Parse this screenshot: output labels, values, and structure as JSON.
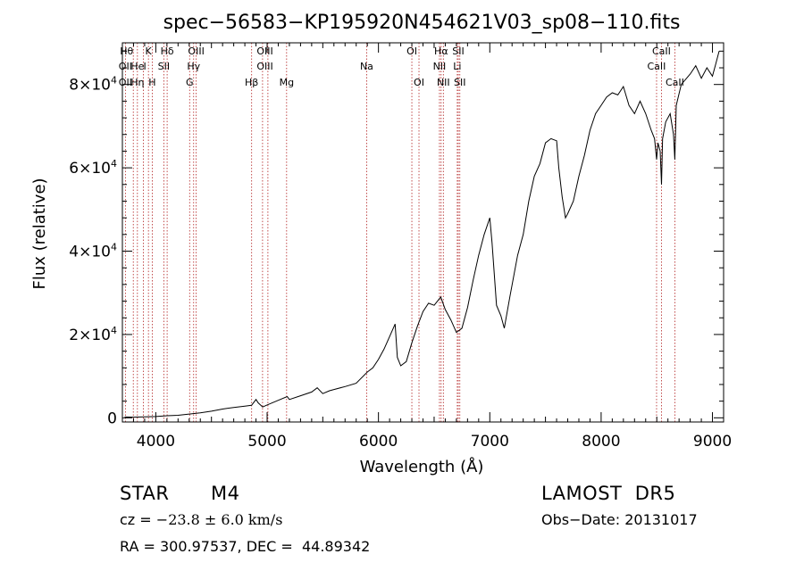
{
  "chart_data": {
    "type": "line",
    "title": "spec−56583−KP195920N454621V03_sp08−110.fits",
    "xlabel": "Wavelength (Å)",
    "ylabel": "Flux (relative)",
    "xlim": [
      3700,
      9100
    ],
    "ylim": [
      -1000,
      90000
    ],
    "x_ticks": [
      4000,
      5000,
      6000,
      7000,
      8000,
      9000
    ],
    "y_ticks": [
      {
        "value": 0,
        "label": "0"
      },
      {
        "value": 20000,
        "label": "2×10",
        "exp": "4"
      },
      {
        "value": 40000,
        "label": "4×10",
        "exp": "4"
      },
      {
        "value": 60000,
        "label": "6×10",
        "exp": "4"
      },
      {
        "value": 80000,
        "label": "8×10",
        "exp": "4"
      }
    ],
    "series": [
      {
        "line_color": "#000000",
        "points": [
          [
            3720,
            200
          ],
          [
            3800,
            150
          ],
          [
            3900,
            250
          ],
          [
            4000,
            300
          ],
          [
            4100,
            500
          ],
          [
            4200,
            600
          ],
          [
            4300,
            900
          ],
          [
            4400,
            1200
          ],
          [
            4500,
            1600
          ],
          [
            4600,
            2100
          ],
          [
            4700,
            2500
          ],
          [
            4800,
            2800
          ],
          [
            4860,
            3000
          ],
          [
            4900,
            4400
          ],
          [
            4920,
            3600
          ],
          [
            4960,
            2600
          ],
          [
            5000,
            3100
          ],
          [
            5100,
            4200
          ],
          [
            5180,
            5100
          ],
          [
            5200,
            4400
          ],
          [
            5300,
            5300
          ],
          [
            5400,
            6200
          ],
          [
            5450,
            7200
          ],
          [
            5500,
            5800
          ],
          [
            5560,
            6500
          ],
          [
            5600,
            6800
          ],
          [
            5700,
            7500
          ],
          [
            5800,
            8300
          ],
          [
            5900,
            11000
          ],
          [
            5950,
            12000
          ],
          [
            6000,
            14000
          ],
          [
            6050,
            16500
          ],
          [
            6100,
            19500
          ],
          [
            6150,
            22500
          ],
          [
            6170,
            14500
          ],
          [
            6200,
            12500
          ],
          [
            6250,
            13500
          ],
          [
            6300,
            18000
          ],
          [
            6350,
            22000
          ],
          [
            6400,
            25500
          ],
          [
            6450,
            27500
          ],
          [
            6500,
            27000
          ],
          [
            6560,
            29000
          ],
          [
            6600,
            26000
          ],
          [
            6650,
            23500
          ],
          [
            6700,
            20500
          ],
          [
            6750,
            21500
          ],
          [
            6800,
            26500
          ],
          [
            6850,
            33000
          ],
          [
            6900,
            39000
          ],
          [
            6950,
            44000
          ],
          [
            7000,
            48000
          ],
          [
            7020,
            42000
          ],
          [
            7060,
            27000
          ],
          [
            7100,
            24500
          ],
          [
            7130,
            21500
          ],
          [
            7180,
            29000
          ],
          [
            7250,
            39000
          ],
          [
            7300,
            44000
          ],
          [
            7350,
            52000
          ],
          [
            7400,
            58000
          ],
          [
            7450,
            61000
          ],
          [
            7500,
            66000
          ],
          [
            7550,
            67000
          ],
          [
            7600,
            66500
          ],
          [
            7620,
            60000
          ],
          [
            7650,
            53000
          ],
          [
            7680,
            48000
          ],
          [
            7700,
            49000
          ],
          [
            7750,
            52000
          ],
          [
            7800,
            58000
          ],
          [
            7850,
            63000
          ],
          [
            7900,
            69000
          ],
          [
            7950,
            73000
          ],
          [
            8000,
            75000
          ],
          [
            8050,
            77000
          ],
          [
            8100,
            78000
          ],
          [
            8150,
            77500
          ],
          [
            8200,
            79500
          ],
          [
            8250,
            75000
          ],
          [
            8300,
            73000
          ],
          [
            8350,
            76000
          ],
          [
            8400,
            73000
          ],
          [
            8450,
            69000
          ],
          [
            8480,
            67000
          ],
          [
            8498,
            62000
          ],
          [
            8510,
            66000
          ],
          [
            8530,
            64000
          ],
          [
            8542,
            56000
          ],
          [
            8552,
            67000
          ],
          [
            8580,
            71000
          ],
          [
            8620,
            73000
          ],
          [
            8650,
            68000
          ],
          [
            8662,
            62000
          ],
          [
            8675,
            75000
          ],
          [
            8720,
            80000
          ],
          [
            8800,
            82500
          ],
          [
            8850,
            84500
          ],
          [
            8900,
            81500
          ],
          [
            8950,
            84000
          ],
          [
            9000,
            82000
          ],
          [
            9030,
            85000
          ],
          [
            9060,
            88000
          ]
        ]
      }
    ],
    "line_markers": [
      {
        "name": "Hθ",
        "wl": 3798,
        "row": 0,
        "anchor": "end"
      },
      {
        "name": "OII",
        "wl": 3727,
        "row": 1,
        "anchor": "middle"
      },
      {
        "name": "OII",
        "wl": 3727,
        "row": 2,
        "anchor": "middle"
      },
      {
        "name": "He",
        "wl": 3835,
        "row": 1,
        "anchor": "middle"
      },
      {
        "name": "Hη",
        "wl": 3835,
        "row": 2,
        "anchor": "middle"
      },
      {
        "name": "I",
        "wl": 3889,
        "row": 1,
        "anchor": "start"
      },
      {
        "name": "K",
        "wl": 3934,
        "row": 0,
        "anchor": "middle"
      },
      {
        "name": "H",
        "wl": 3968,
        "row": 2,
        "anchor": "middle"
      },
      {
        "name": "Hδ",
        "wl": 4102,
        "row": 0,
        "anchor": "middle"
      },
      {
        "name": "SII",
        "wl": 4072,
        "row": 1,
        "anchor": "middle"
      },
      {
        "name": "OIII",
        "wl": 4363,
        "row": 0,
        "anchor": "middle"
      },
      {
        "name": "Hγ",
        "wl": 4340,
        "row": 1,
        "anchor": "middle"
      },
      {
        "name": "G",
        "wl": 4304,
        "row": 2,
        "anchor": "middle"
      },
      {
        "name": "Hβ",
        "wl": 4861,
        "row": 2,
        "anchor": "middle"
      },
      {
        "name": "OIII",
        "wl": 4980,
        "row": 0,
        "anchor": "middle"
      },
      {
        "name": "OIII",
        "wl": 4980,
        "row": 1,
        "anchor": "middle"
      },
      {
        "name": "Mg",
        "wl": 5175,
        "row": 2,
        "anchor": "middle"
      },
      {
        "name": "Na",
        "wl": 5894,
        "row": 1,
        "anchor": "middle"
      },
      {
        "name": "OI",
        "wl": 6300,
        "row": 0,
        "anchor": "middle"
      },
      {
        "name": "OI",
        "wl": 6364,
        "row": 2,
        "anchor": "middle"
      },
      {
        "name": "Hα",
        "wl": 6563,
        "row": 0,
        "anchor": "middle"
      },
      {
        "name": "NII",
        "wl": 6548,
        "row": 1,
        "anchor": "middle"
      },
      {
        "name": "NII",
        "wl": 6583,
        "row": 2,
        "anchor": "middle"
      },
      {
        "name": "SII",
        "wl": 6717,
        "row": 0,
        "anchor": "middle"
      },
      {
        "name": "Li",
        "wl": 6708,
        "row": 1,
        "anchor": "middle"
      },
      {
        "name": "SII",
        "wl": 6731,
        "row": 2,
        "anchor": "middle"
      },
      {
        "name": "CaII",
        "wl": 8542,
        "row": 0,
        "anchor": "middle"
      },
      {
        "name": "CaII",
        "wl": 8498,
        "row": 1,
        "anchor": "middle"
      },
      {
        "name": "CaII",
        "wl": 8662,
        "row": 2,
        "anchor": "middle"
      }
    ],
    "marker_line_positions": [
      3727,
      3798,
      3835,
      3889,
      3934,
      3968,
      4072,
      4102,
      4304,
      4340,
      4363,
      4861,
      4959,
      5007,
      5175,
      5894,
      6300,
      6364,
      6548,
      6563,
      6583,
      6708,
      6717,
      6731,
      8498,
      8542,
      8662
    ],
    "marker_color": "#b22222"
  },
  "info": {
    "object_class": "STAR",
    "subclass": "M4",
    "survey": "LAMOST  DR5",
    "cz_label": "cz = ",
    "cz_value": "−23.8",
    "cz_err": "± 6.0 km/s",
    "obs_date": "Obs−Date: 20131017",
    "coords": "RA = 300.97537, DEC =  44.89342"
  }
}
